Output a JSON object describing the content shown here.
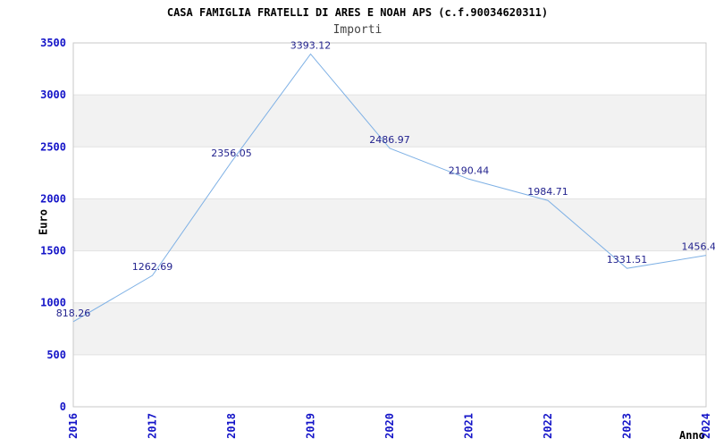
{
  "header": {
    "title": "CASA FAMIGLIA FRATELLI DI ARES E NOAH APS (c.f.90034620311)",
    "subtitle": "Importi"
  },
  "chart_data": {
    "type": "line",
    "title": "CASA FAMIGLIA FRATELLI DI ARES E NOAH APS (c.f.90034620311)",
    "subtitle": "Importi",
    "xlabel": "Anno",
    "ylabel": "Euro",
    "x": [
      2016,
      2017,
      2018,
      2019,
      2020,
      2021,
      2022,
      2023,
      2024
    ],
    "values": [
      818.26,
      1262.69,
      2356.05,
      3393.12,
      2486.97,
      2190.44,
      1984.71,
      1331.51,
      1456.4
    ],
    "point_labels": [
      "818.26",
      "1262.69",
      "2356.05",
      "3393.12",
      "2486.97",
      "2190.44",
      "1984.71",
      "1331.51",
      "1456.4"
    ],
    "ylim": [
      0,
      3500
    ],
    "ytick_step": 500,
    "grid": "horizontal-alternating-bands",
    "legend": "none",
    "colors": {
      "line": "#7FB1E5",
      "point_label": "#23238E",
      "tick_label": "#1414C8",
      "band": "#F2F2F2",
      "gridline": "#E2E2E2",
      "border": "#C9C9C9",
      "title": "#000000",
      "subtitle": "#444444"
    }
  }
}
